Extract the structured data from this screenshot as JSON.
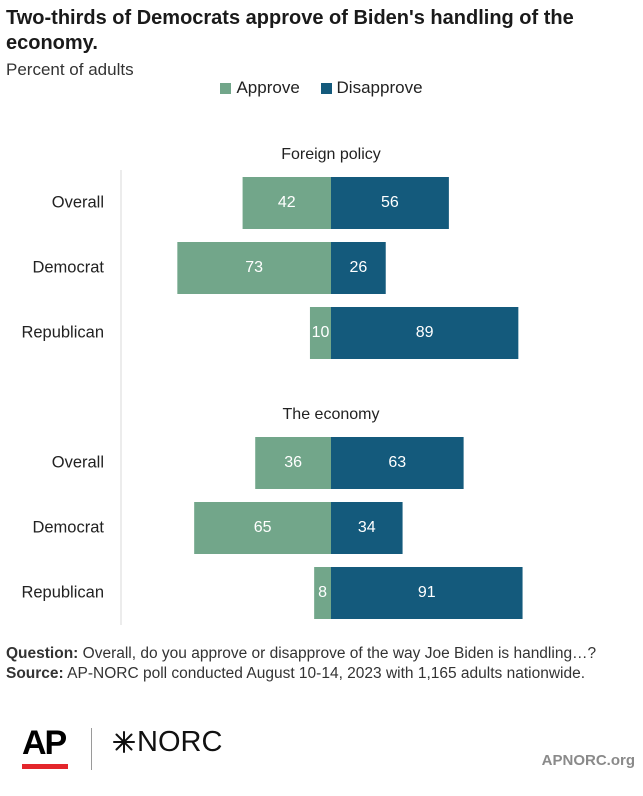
{
  "title": "Two-thirds of Democrats approve of Biden's handling of the economy.",
  "subtitle": "Percent of adults",
  "legend": {
    "approve": "Approve",
    "disapprove": "Disapprove"
  },
  "colors": {
    "approve": "#72a68a",
    "disapprove": "#145a7c",
    "axis": "#d9d9d9"
  },
  "chart_data": {
    "type": "bar",
    "orientation": "horizontal-diverging",
    "series": [
      {
        "name": "Approve",
        "color": "#72a68a"
      },
      {
        "name": "Disapprove",
        "color": "#145a7c"
      }
    ],
    "groups": [
      {
        "title": "Foreign policy",
        "rows": [
          {
            "label": "Overall",
            "approve": 42,
            "disapprove": 56
          },
          {
            "label": "Democrat",
            "approve": 73,
            "disapprove": 26
          },
          {
            "label": "Republican",
            "approve": 10,
            "disapprove": 89
          }
        ]
      },
      {
        "title": "The economy",
        "rows": [
          {
            "label": "Overall",
            "approve": 36,
            "disapprove": 63
          },
          {
            "label": "Democrat",
            "approve": 65,
            "disapprove": 34
          },
          {
            "label": "Republican",
            "approve": 8,
            "disapprove": 91
          }
        ]
      }
    ]
  },
  "notes": {
    "question_label": "Question:",
    "question_text": " Overall, do you approve or disapprove of the way Joe Biden is handling…?",
    "source_label": "Source:",
    "source_text": " AP-NORC poll conducted August 10-14, 2023 with 1,165 adults nationwide."
  },
  "footer": {
    "logo_ap": "AP",
    "logo_norc": "NORC",
    "site": "APNORC.org"
  }
}
